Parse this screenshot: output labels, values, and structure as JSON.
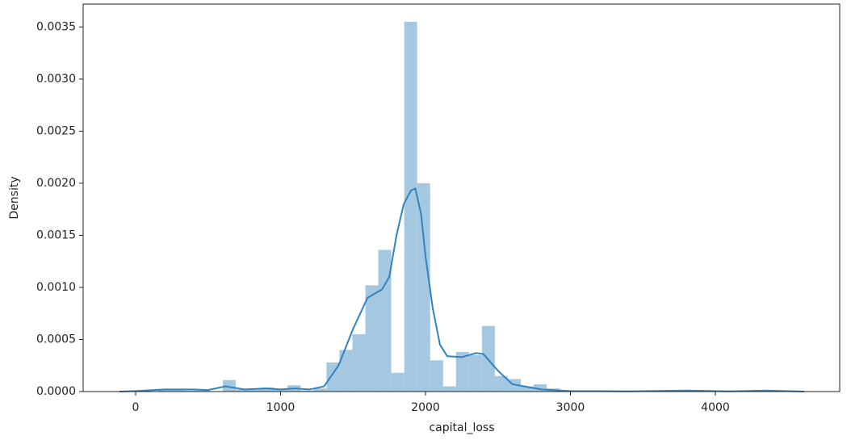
{
  "chart_data": {
    "type": "histogram",
    "xlabel": "capital_loss",
    "ylabel": "Density",
    "bins": [
      155,
      244.38,
      333.76,
      423.14,
      512.52,
      601.9,
      691.28,
      780.66,
      870.04,
      959.42,
      1048.8,
      1138.18,
      1227.56,
      1316.94,
      1406.32,
      1495.7,
      1585.08,
      1674.46,
      1763.84,
      1853.22,
      1942.6,
      2031.98,
      2121.36,
      2210.74,
      2300.12,
      2389.5,
      2478.88,
      2568.26,
      2657.64,
      2747.02,
      2836.4,
      2925.78,
      3015.16,
      3104.54,
      3193.92,
      3283.3,
      3372.68,
      3462.06,
      3551.44,
      3640.82,
      3730.2,
      3819.58,
      3908.96,
      3998.34,
      4087.72,
      4177.1,
      4266.48,
      4355.86
    ],
    "values": [
      2e-05,
      2e-05,
      1e-05,
      1e-05,
      0,
      0.00011,
      2e-05,
      3e-05,
      4e-05,
      2e-05,
      6e-05,
      1e-05,
      3e-05,
      0.00028,
      0.0004,
      0.00055,
      0.00102,
      0.00136,
      0.00018,
      0.00355,
      0.002,
      0.0003,
      5e-05,
      0.00038,
      0.00035,
      0.00063,
      0.00015,
      0.00012,
      5e-05,
      7e-05,
      3e-05,
      0,
      0,
      0,
      0,
      0,
      0,
      0,
      0,
      0,
      1e-05,
      0,
      0,
      0,
      0,
      0,
      1e-05
    ],
    "color": "#a5c8e1",
    "kde": {
      "color": "#3282bd",
      "x": [
        -111,
        0,
        200,
        400,
        500,
        620,
        750,
        900,
        1000,
        1100,
        1200,
        1300,
        1400,
        1500,
        1600,
        1700,
        1750,
        1800,
        1850,
        1900,
        1930,
        1970,
        2000,
        2050,
        2100,
        2150,
        2250,
        2350,
        2400,
        2500,
        2600,
        2800,
        3000,
        3400,
        3800,
        4100,
        4350,
        4613
      ],
      "values": [
        0,
        5e-06,
        2e-05,
        2e-05,
        1.5e-05,
        5e-05,
        2e-05,
        3e-05,
        2e-05,
        3e-05,
        2e-05,
        5e-05,
        0.00025,
        0.0006,
        0.0009,
        0.00098,
        0.0011,
        0.0015,
        0.0018,
        0.00193,
        0.00195,
        0.0017,
        0.0013,
        0.0008,
        0.00045,
        0.00034,
        0.00033,
        0.00037,
        0.00036,
        0.0002,
        7e-05,
        2e-05,
        5e-06,
        2e-06,
        1e-05,
        2e-06,
        1e-05,
        0
      ]
    },
    "xlim": [
      -362,
      4858
    ],
    "ylim": [
      0,
      0.00372
    ],
    "xticks": [
      0,
      1000,
      2000,
      3000,
      4000
    ],
    "yticks": [
      {
        "value": 0,
        "label": "0.0000"
      },
      {
        "value": 0.0005,
        "label": "0.0005"
      },
      {
        "value": 0.001,
        "label": "0.0010"
      },
      {
        "value": 0.0015,
        "label": "0.0015"
      },
      {
        "value": 0.002,
        "label": "0.0020"
      },
      {
        "value": 0.0025,
        "label": "0.0025"
      },
      {
        "value": 0.003,
        "label": "0.0030"
      },
      {
        "value": 0.0035,
        "label": "0.0035"
      }
    ]
  }
}
